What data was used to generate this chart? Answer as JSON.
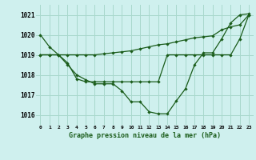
{
  "title": "Graphe pression niveau de la mer (hPa)",
  "background_color": "#cff0ee",
  "grid_color": "#a8d8cc",
  "line_color": "#1a5c1a",
  "x_labels": [
    "0",
    "1",
    "2",
    "3",
    "4",
    "5",
    "6",
    "7",
    "8",
    "9",
    "10",
    "11",
    "12",
    "13",
    "14",
    "15",
    "16",
    "17",
    "18",
    "19",
    "20",
    "21",
    "22",
    "23"
  ],
  "ylim": [
    1015.5,
    1021.5
  ],
  "yticks": [
    1016,
    1017,
    1018,
    1019,
    1020,
    1021
  ],
  "series": [
    [
      1020.0,
      1019.4,
      1019.0,
      1018.5,
      1018.0,
      1017.75,
      1017.55,
      1017.55,
      1017.55,
      1017.2,
      1016.65,
      1016.65,
      1016.15,
      1016.05,
      1016.05,
      1016.7,
      1017.3,
      1018.5,
      1019.1,
      1019.1,
      1019.8,
      1020.6,
      1021.0,
      1021.05
    ],
    [
      1019.0,
      1019.0,
      1019.0,
      1019.0,
      1019.0,
      1019.0,
      1019.0,
      1019.05,
      1019.1,
      1019.15,
      1019.2,
      1019.3,
      1019.4,
      1019.5,
      1019.55,
      1019.65,
      1019.75,
      1019.85,
      1019.9,
      1019.95,
      1020.25,
      1020.4,
      1020.5,
      1021.0
    ],
    [
      1019.0,
      1019.0,
      1019.0,
      1018.6,
      1017.8,
      1017.65,
      1017.65,
      1017.65,
      1017.65,
      1017.65,
      1017.65,
      1017.65,
      1017.65,
      1017.65,
      1019.0,
      1019.0,
      1019.0,
      1019.0,
      1019.0,
      1019.0,
      1019.0,
      1019.0,
      1019.8,
      1021.0
    ]
  ]
}
